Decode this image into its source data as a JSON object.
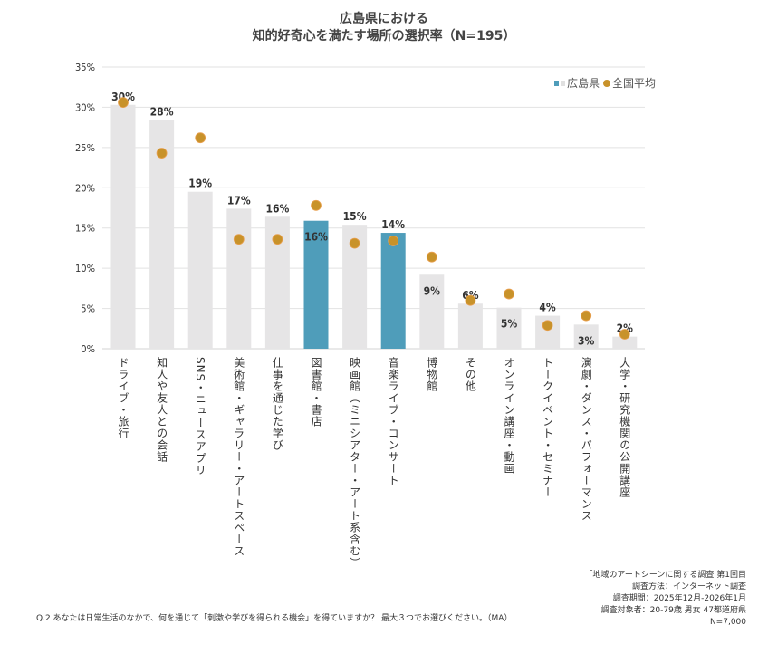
{
  "chart_data": {
    "type": "bar",
    "title": [
      "広島県における",
      "知的好奇心を満たす場所の選択率（N=195）"
    ],
    "categories": [
      "ドライブ・旅行",
      "知人や友人との会話",
      "SNS・ニュースアプリ",
      "美術館・ギャラリー・アートスペース",
      "仕事を通じた学び",
      "図書館・書店",
      "映画館（ミニシアター・アート系含む）",
      "音楽ライブ・コンサート",
      "博物館",
      "その他",
      "オンライン講座・動画",
      "トークイベント・セミナー",
      "演劇・ダンス・パフォーマンス",
      "大学・研究機関の公開講座"
    ],
    "series": [
      {
        "name": "広島県",
        "type": "bar",
        "values": [
          30.3,
          28.4,
          19.5,
          17.4,
          16.4,
          15.9,
          15.4,
          14.4,
          9.2,
          5.6,
          5.1,
          4.1,
          3.0,
          1.5
        ],
        "labels": [
          "30%",
          "28%",
          "19%",
          "17%",
          "16%",
          "16%",
          "15%",
          "14%",
          "9%",
          "6%",
          "5%",
          "4%",
          "3%",
          "2%"
        ]
      },
      {
        "name": "全国平均",
        "type": "scatter",
        "values": [
          30.6,
          24.3,
          26.2,
          13.6,
          13.6,
          17.8,
          13.1,
          13.4,
          11.4,
          6.0,
          6.8,
          2.9,
          4.1,
          1.8
        ]
      }
    ],
    "highlighted": [
      "図書館・書店",
      "音楽ライブ・コンサート"
    ],
    "ylim": [
      0,
      35
    ],
    "yticks": [
      "0%",
      "5%",
      "10%",
      "15%",
      "20%",
      "25%",
      "30%",
      "35%"
    ],
    "grid": true,
    "legend": "top-right",
    "colors": {
      "bar": "#e6e5e6",
      "highlight": "#4f9dba",
      "dot": "#c8922a",
      "grid": "#e2e2e2"
    }
  },
  "footer": {
    "source_lines": [
      "「地域のアートシーンに関する調査 第1回目",
      "調査方法：インターネット調査",
      "調査期間：2025年12月-2026年1月",
      "調査対象者：20-79歳 男女 47都道府県",
      "N=7,000"
    ],
    "question": "Q.2 あなたは日常生活のなかで、何を通じて「刺激や学びを得られる機会」を得ていますか？ 最大３つでお選びください。（MA）"
  }
}
